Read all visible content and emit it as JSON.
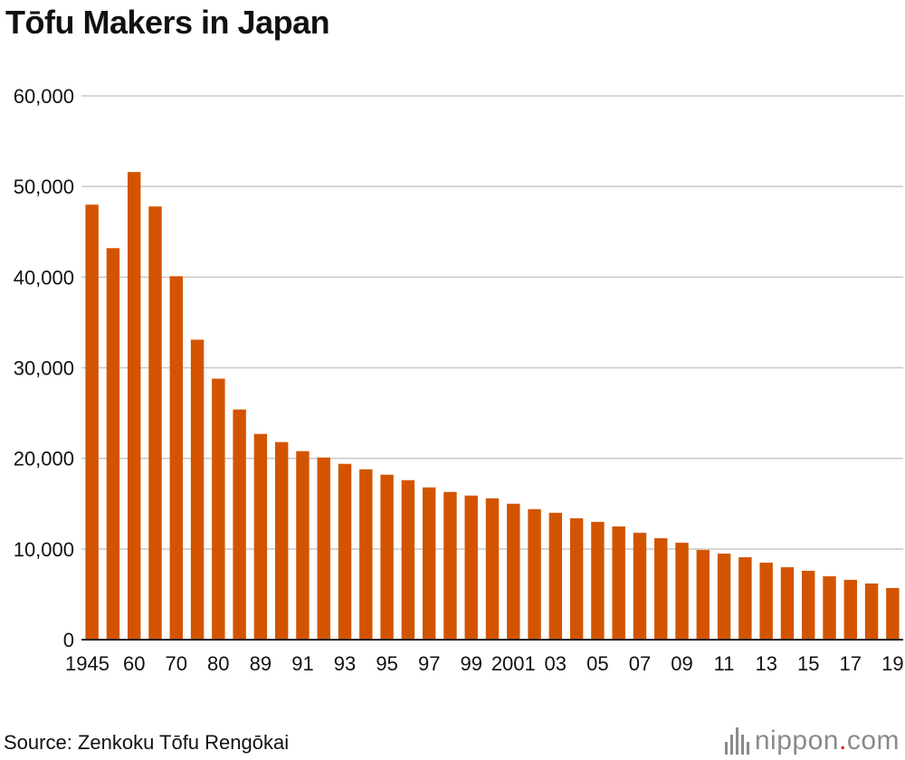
{
  "chart_data": {
    "type": "bar",
    "title": "Tōfu Makers in Japan",
    "xlabel": "",
    "ylabel": "",
    "ylim": [
      0,
      60000
    ],
    "yticks": [
      0,
      10000,
      20000,
      30000,
      40000,
      50000,
      60000
    ],
    "ytick_labels": [
      "0",
      "10,000",
      "20,000",
      "30,000",
      "40,000",
      "50,000",
      "60,000"
    ],
    "grid": true,
    "color": "#d35400",
    "categories": [
      "1945",
      "55",
      "60",
      "65",
      "70",
      "75",
      "80",
      "85",
      "89",
      "90",
      "91",
      "92",
      "93",
      "94",
      "95",
      "96",
      "97",
      "98",
      "99",
      "2000",
      "01",
      "02",
      "03",
      "04",
      "05",
      "06",
      "07",
      "08",
      "09",
      "10",
      "11",
      "12",
      "13",
      "14",
      "15",
      "16",
      "17",
      "18",
      "19"
    ],
    "category_labels_shown": [
      "1945",
      "60",
      "70",
      "80",
      "89",
      "91",
      "93",
      "95",
      "97",
      "99",
      "2001",
      "03",
      "05",
      "07",
      "09",
      "11",
      "13",
      "15",
      "17",
      "19"
    ],
    "values": [
      48000,
      43200,
      51600,
      47800,
      40100,
      33100,
      28800,
      25400,
      22700,
      21800,
      20800,
      20100,
      19400,
      18800,
      18200,
      17600,
      16800,
      16300,
      15900,
      15600,
      15000,
      14400,
      14000,
      13400,
      13000,
      12500,
      11800,
      11200,
      10700,
      9900,
      9500,
      9100,
      8500,
      8000,
      7600,
      7000,
      6600,
      6200,
      5700
    ]
  },
  "footer": {
    "source": "Source: Zenkoku Tōfu Rengōkai",
    "brand_name": "nippon",
    "brand_dot": ".",
    "brand_suffix": "com"
  }
}
